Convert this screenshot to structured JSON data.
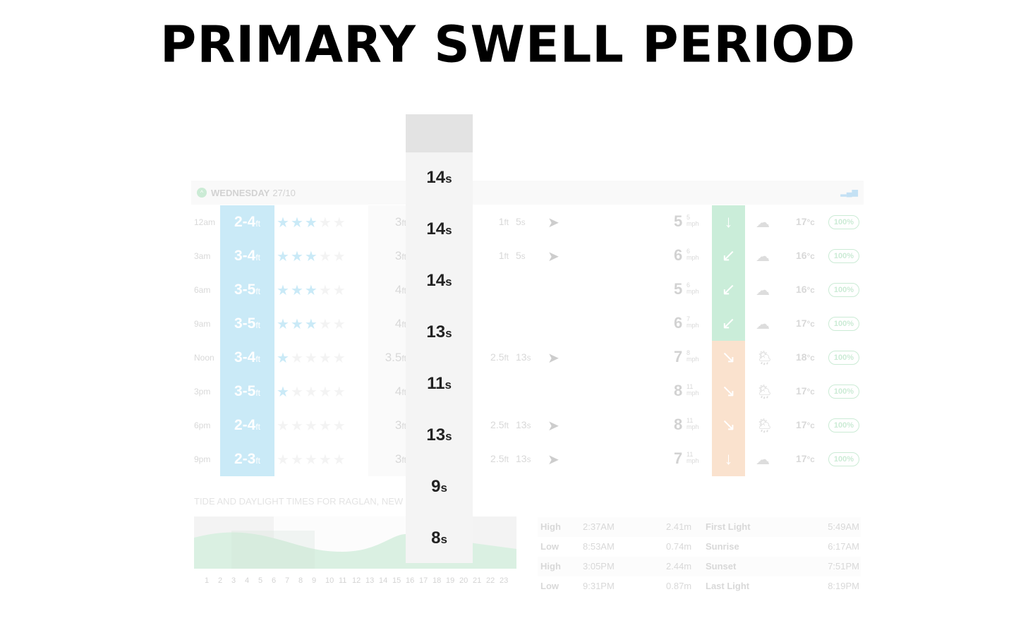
{
  "title": "PRIMARY SWELL PERIOD",
  "day": {
    "name": "WEDNESDAY",
    "date": "27/10"
  },
  "rows": [
    {
      "time": "12am",
      "wave": "2-4",
      "stars": 3,
      "swell": "3",
      "s2h": "1",
      "s2p": "5",
      "wind": "5",
      "gust": "5",
      "wind_color": "#5cc98a",
      "wind_arrow": "↓",
      "weather": "cloud",
      "temp": "17",
      "prob": "100%"
    },
    {
      "time": "3am",
      "wave": "3-4",
      "stars": 3,
      "swell": "3",
      "s2h": "1",
      "s2p": "5",
      "wind": "6",
      "gust": "6",
      "wind_color": "#5cc98a",
      "wind_arrow": "↙",
      "weather": "cloud",
      "temp": "16",
      "prob": "100%"
    },
    {
      "time": "6am",
      "wave": "3-5",
      "stars": 3,
      "swell": "4",
      "s2h": "",
      "s2p": "",
      "wind": "5",
      "gust": "6",
      "wind_color": "#5cc98a",
      "wind_arrow": "↙",
      "weather": "cloud",
      "temp": "16",
      "prob": "100%"
    },
    {
      "time": "9am",
      "wave": "3-5",
      "stars": 3,
      "swell": "4",
      "s2h": "",
      "s2p": "",
      "wind": "6",
      "gust": "7",
      "wind_color": "#5cc98a",
      "wind_arrow": "↙",
      "weather": "cloud",
      "temp": "17",
      "prob": "100%"
    },
    {
      "time": "Noon",
      "wave": "3-4",
      "stars": 1,
      "swell": "3.5",
      "s2h": "2.5",
      "s2p": "13",
      "wind": "7",
      "gust": "8",
      "wind_color": "#f2a66a",
      "wind_arrow": "↘",
      "weather": "rain-sun",
      "temp": "18",
      "prob": "100%"
    },
    {
      "time": "3pm",
      "wave": "3-5",
      "stars": 1,
      "swell": "4",
      "s2h": "",
      "s2p": "",
      "wind": "8",
      "gust": "11",
      "wind_color": "#f2a66a",
      "wind_arrow": "↘",
      "weather": "rain-sun",
      "temp": "17",
      "prob": "100%"
    },
    {
      "time": "6pm",
      "wave": "2-4",
      "stars": 0,
      "swell": "3",
      "s2h": "2.5",
      "s2p": "13",
      "wind": "8",
      "gust": "11",
      "wind_color": "#f2a66a",
      "wind_arrow": "↘",
      "weather": "rain-sun",
      "temp": "17",
      "prob": "100%"
    },
    {
      "time": "9pm",
      "wave": "2-3",
      "stars": 0,
      "swell": "3",
      "s2h": "2.5",
      "s2p": "13",
      "wind": "7",
      "gust": "11",
      "wind_color": "#f2a66a",
      "wind_arrow": "↓",
      "weather": "rain-moon",
      "temp": "17",
      "prob": "100%"
    }
  ],
  "units": {
    "ft": "ft",
    "s": "s",
    "mph": "mph",
    "c": "°c"
  },
  "period_column": [
    "14",
    "14",
    "14",
    "13",
    "11",
    "13",
    "9",
    "8"
  ],
  "tide": {
    "title": "TIDE AND DAYLIGHT TIMES FOR RAGLAN, NEW",
    "hours": [
      "1",
      "2",
      "3",
      "4",
      "5",
      "6",
      "7",
      "8",
      "9",
      "10",
      "11",
      "12",
      "13",
      "14",
      "15",
      "16",
      "17",
      "18",
      "19",
      "20",
      "21",
      "22",
      "23"
    ],
    "table": [
      {
        "type": "High",
        "time": "2:37AM",
        "height": "2.41m",
        "light": "First Light",
        "light_time": "5:49AM"
      },
      {
        "type": "Low",
        "time": "8:53AM",
        "height": "0.74m",
        "light": "Sunrise",
        "light_time": "6:17AM"
      },
      {
        "type": "High",
        "time": "3:05PM",
        "height": "2.44m",
        "light": "Sunset",
        "light_time": "7:51PM"
      },
      {
        "type": "Low",
        "time": "9:31PM",
        "height": "0.87m",
        "light": "Last Light",
        "light_time": "8:19PM"
      }
    ]
  }
}
